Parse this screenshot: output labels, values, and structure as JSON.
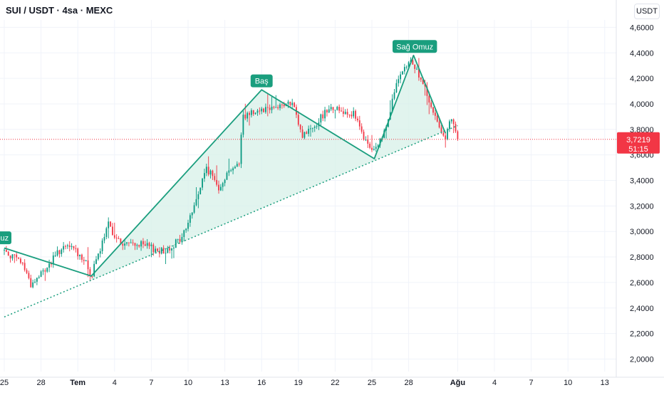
{
  "header": {
    "title": "SUI / USDT · 4sa · MEXC",
    "currency": "USDT"
  },
  "colors": {
    "up": "#089981",
    "down": "#f23645",
    "pattern": "#1a9e7e",
    "fill": "#d7f0e8",
    "grid": "#f0f3fa",
    "axis_text": "#131722"
  },
  "price_tag": {
    "value": "3,7219",
    "countdown": "51:15"
  },
  "chart_data": {
    "type": "candlestick",
    "y_ticks": [
      "2,0000",
      "2,2000",
      "2,4000",
      "2,6000",
      "2,8000",
      "3,0000",
      "3,2000",
      "3,4000",
      "3,6000",
      "3,8000",
      "4,0000",
      "4,2000",
      "4,4000",
      "4,6000"
    ],
    "ylim": [
      1.88,
      4.66
    ],
    "x_ticks": [
      {
        "label": "25",
        "day": 0
      },
      {
        "label": "28",
        "day": 3
      },
      {
        "label": "Tem",
        "day": 6
      },
      {
        "label": "4",
        "day": 9
      },
      {
        "label": "7",
        "day": 12
      },
      {
        "label": "10",
        "day": 15
      },
      {
        "label": "13",
        "day": 18
      },
      {
        "label": "16",
        "day": 21
      },
      {
        "label": "19",
        "day": 24
      },
      {
        "label": "22",
        "day": 27
      },
      {
        "label": "25",
        "day": 30
      },
      {
        "label": "28",
        "day": 33
      },
      {
        "label": "Ağu",
        "day": 37
      },
      {
        "label": "4",
        "day": 40
      },
      {
        "label": "7",
        "day": 43
      },
      {
        "label": "10",
        "day": 46
      },
      {
        "label": "13",
        "day": 49
      }
    ],
    "last_price": 3.7219,
    "pattern_labels": [
      {
        "text": "Omuz",
        "day": -0.5,
        "price": 2.95
      },
      {
        "text": "Baş",
        "day": 21.0,
        "price": 4.18
      },
      {
        "text": "Sağ Omuz",
        "day": 33.5,
        "price": 4.45
      }
    ],
    "pattern_line": [
      {
        "day": 0,
        "price": 2.87
      },
      {
        "day": 7.1,
        "price": 2.65
      },
      {
        "day": 21.0,
        "price": 4.11
      },
      {
        "day": 30.2,
        "price": 3.57
      },
      {
        "day": 33.4,
        "price": 4.38
      },
      {
        "day": 36.0,
        "price": 3.77
      }
    ],
    "neckline": [
      {
        "day": 0,
        "price": 2.33
      },
      {
        "day": 37,
        "price": 3.83
      }
    ],
    "anchors": [
      {
        "day": 0,
        "price": 2.85
      },
      {
        "day": 1.5,
        "price": 2.75
      },
      {
        "day": 2.2,
        "price": 2.58
      },
      {
        "day": 3.5,
        "price": 2.72
      },
      {
        "day": 4.5,
        "price": 2.85
      },
      {
        "day": 5.5,
        "price": 2.88
      },
      {
        "day": 6.5,
        "price": 2.78
      },
      {
        "day": 7.1,
        "price": 2.65
      },
      {
        "day": 8.5,
        "price": 3.05
      },
      {
        "day": 9.5,
        "price": 2.9
      },
      {
        "day": 11,
        "price": 2.9
      },
      {
        "day": 13,
        "price": 2.84
      },
      {
        "day": 14.5,
        "price": 2.95
      },
      {
        "day": 15.5,
        "price": 3.2
      },
      {
        "day": 16.5,
        "price": 3.5
      },
      {
        "day": 17.5,
        "price": 3.35
      },
      {
        "day": 18.5,
        "price": 3.5
      },
      {
        "day": 19.2,
        "price": 3.52
      },
      {
        "day": 19.4,
        "price": 3.9
      },
      {
        "day": 20.5,
        "price": 3.95
      },
      {
        "day": 22,
        "price": 3.98
      },
      {
        "day": 23.5,
        "price": 4.0
      },
      {
        "day": 24.3,
        "price": 3.75
      },
      {
        "day": 25.5,
        "price": 3.85
      },
      {
        "day": 26.5,
        "price": 3.98
      },
      {
        "day": 27.5,
        "price": 3.95
      },
      {
        "day": 28.5,
        "price": 3.92
      },
      {
        "day": 29.5,
        "price": 3.7
      },
      {
        "day": 30.2,
        "price": 3.62
      },
      {
        "day": 31,
        "price": 3.78
      },
      {
        "day": 32,
        "price": 4.15
      },
      {
        "day": 33.2,
        "price": 4.35
      },
      {
        "day": 34.2,
        "price": 4.15
      },
      {
        "day": 35,
        "price": 3.92
      },
      {
        "day": 36,
        "price": 3.74
      },
      {
        "day": 36.5,
        "price": 3.88
      },
      {
        "day": 37,
        "price": 3.72
      }
    ]
  }
}
